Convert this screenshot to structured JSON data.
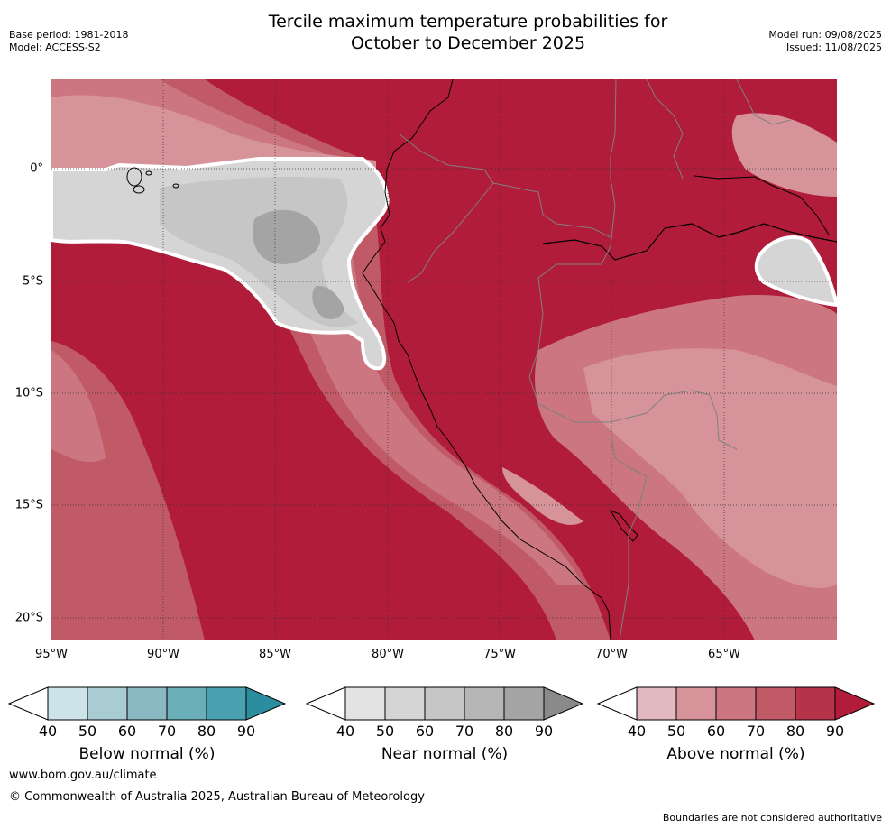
{
  "title": {
    "line1": "Tercile maximum temperature probabilities for",
    "line2": "October to December 2025"
  },
  "meta": {
    "base_period": "Base period: 1981-2018",
    "model": "Model: ACCESS-S2",
    "model_run": "Model run: 09/08/2025",
    "issued": "Issued: 11/08/2025"
  },
  "axes": {
    "lat_ticks": [
      "0°",
      "5°S",
      "10°S",
      "15°S",
      "20°S"
    ],
    "lon_ticks": [
      "95°W",
      "90°W",
      "85°W",
      "80°W",
      "75°W",
      "70°W",
      "65°W"
    ]
  },
  "map_data": {
    "region": "western South America and eastern Pacific Ocean",
    "dominant_category": "Above normal",
    "land_category_level": "80-90% above normal",
    "ocean_near_normal_zone": "equatorial Pacific west of Ecuador"
  },
  "colorbars": [
    {
      "label": "Below normal (%)",
      "ticks": [
        "40",
        "50",
        "60",
        "70",
        "80",
        "90"
      ],
      "colors": [
        "#cce4e9",
        "#a9cbd2",
        "#8ab8c3",
        "#6aaeb8",
        "#49a0ae",
        "#2c8d9e"
      ]
    },
    {
      "label": "Near normal (%)",
      "ticks": [
        "40",
        "50",
        "60",
        "70",
        "80",
        "90"
      ],
      "colors": [
        "#e3e3e3",
        "#d5d5d5",
        "#c6c6c6",
        "#b5b5b5",
        "#a4a4a4",
        "#8a8a8a"
      ]
    },
    {
      "label": "Above normal (%)",
      "ticks": [
        "40",
        "50",
        "60",
        "70",
        "80",
        "90"
      ],
      "colors": [
        "#e2b9be",
        "#d6939a",
        "#cb7680",
        "#c05a67",
        "#b6344a",
        "#b01c3a"
      ]
    }
  ],
  "footer": {
    "url": "www.bom.gov.au/climate",
    "copyright": "© Commonwealth of Australia 2025, Australian Bureau of Meteorology",
    "note": "Boundaries are not considered authoritative"
  }
}
